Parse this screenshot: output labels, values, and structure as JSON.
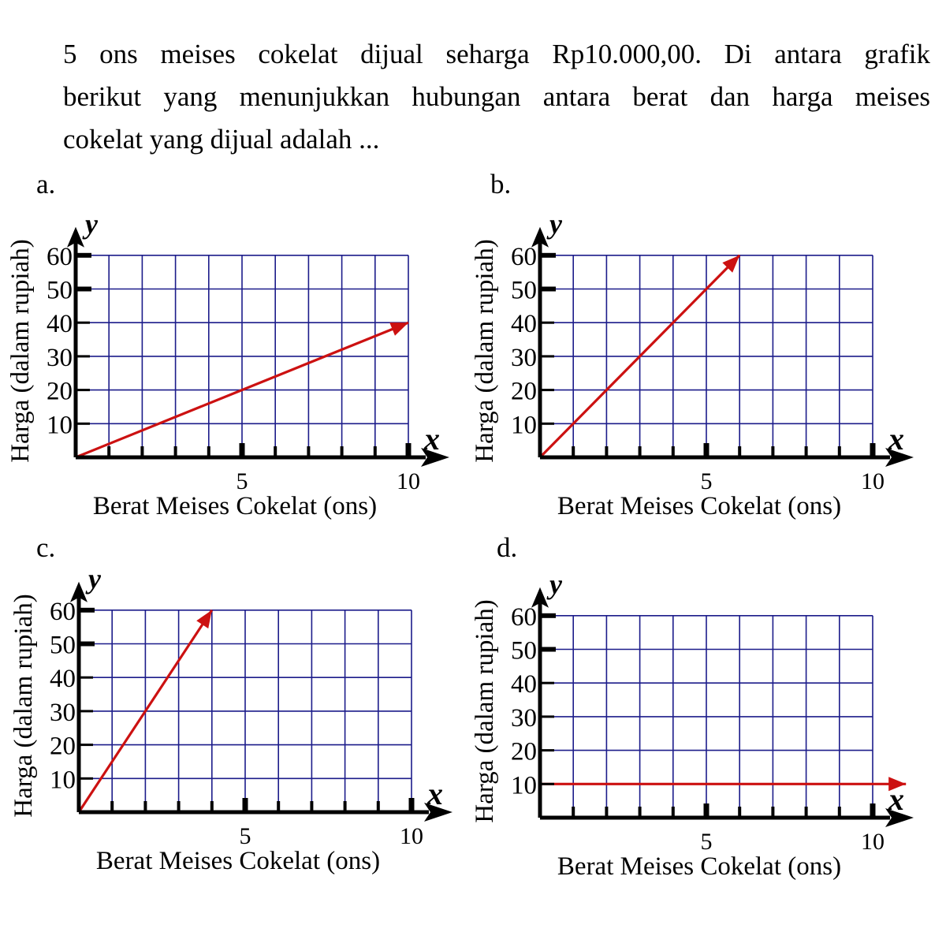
{
  "question": {
    "line1": "5 ons meises cokelat dijual seharga Rp10.000,00. Di antara grafik",
    "line2": "berikut yang menunjukkan hubungan antara berat dan harga meises",
    "line3": "cokelat yang dijual adalah ..."
  },
  "colors": {
    "grid": "#1c1c8a",
    "line": "#cc1111",
    "axis": "#000000"
  },
  "chart_data": [
    {
      "label": "a.",
      "type": "line",
      "title": "",
      "xlabel": "Berat Meises Cokelat (ons)",
      "ylabel": "Harga (dalam rupiah)",
      "x_axis_symbol": "x",
      "y_axis_symbol": "y",
      "xlim": [
        0,
        10
      ],
      "ylim": [
        0,
        60
      ],
      "x_tick_labels": [
        "5",
        "10"
      ],
      "y_tick_labels": [
        "10",
        "20",
        "30",
        "40",
        "50",
        "60"
      ],
      "grid": true,
      "series": [
        {
          "name": "harga",
          "x": [
            0,
            10
          ],
          "y": [
            0,
            40
          ]
        }
      ]
    },
    {
      "label": "b.",
      "type": "line",
      "title": "",
      "xlabel": "Berat Meises Cokelat (ons)",
      "ylabel": "Harga (dalam rupiah)",
      "x_axis_symbol": "x",
      "y_axis_symbol": "y",
      "xlim": [
        0,
        10
      ],
      "ylim": [
        0,
        60
      ],
      "x_tick_labels": [
        "5",
        "10"
      ],
      "y_tick_labels": [
        "10",
        "20",
        "30",
        "40",
        "50",
        "60"
      ],
      "grid": true,
      "series": [
        {
          "name": "harga",
          "x": [
            0,
            6
          ],
          "y": [
            0,
            60
          ]
        }
      ]
    },
    {
      "label": "c.",
      "type": "line",
      "title": "",
      "xlabel": "Berat Meises Cokelat (ons)",
      "ylabel": "Harga (dalam rupiah)",
      "x_axis_symbol": "x",
      "y_axis_symbol": "y",
      "xlim": [
        0,
        10
      ],
      "ylim": [
        0,
        60
      ],
      "x_tick_labels": [
        "5",
        "10"
      ],
      "y_tick_labels": [
        "10",
        "20",
        "30",
        "40",
        "50",
        "60"
      ],
      "grid": true,
      "series": [
        {
          "name": "harga",
          "x": [
            0,
            4
          ],
          "y": [
            0,
            60
          ]
        }
      ]
    },
    {
      "label": "d.",
      "type": "line",
      "title": "",
      "xlabel": "Berat Meises Cokelat (ons)",
      "ylabel": "Harga (dalam rupiah)",
      "x_axis_symbol": "x",
      "y_axis_symbol": "y",
      "xlim": [
        0,
        10
      ],
      "ylim": [
        0,
        60
      ],
      "x_tick_labels": [
        "5",
        "10"
      ],
      "y_tick_labels": [
        "10",
        "20",
        "30",
        "40",
        "50",
        "60"
      ],
      "grid": true,
      "series": [
        {
          "name": "harga",
          "x": [
            0,
            11
          ],
          "y": [
            10,
            10
          ]
        }
      ]
    }
  ]
}
